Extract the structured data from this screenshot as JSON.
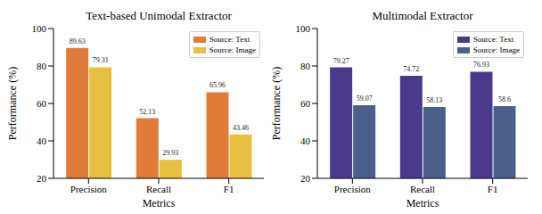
{
  "chart_data": [
    {
      "type": "bar",
      "title": "Text-based Unimodal Extractor",
      "x_label": "Metrics",
      "y_label": "Performance (%)",
      "categories": [
        "Precision",
        "Recall",
        "F1"
      ],
      "series": [
        {
          "name": "Source: Text",
          "color": "#e07b39",
          "values": [
            89.63,
            52.13,
            65.96
          ]
        },
        {
          "name": "Source: Image",
          "color": "#e8c040",
          "values": [
            79.31,
            29.93,
            43.46
          ]
        }
      ],
      "ylim": [
        20,
        100
      ],
      "yticks": [
        20,
        40,
        60,
        80,
        100
      ],
      "legend": "upper right",
      "data_labels": true
    },
    {
      "type": "bar",
      "title": "Multimodal Extractor",
      "x_label": "Metrics",
      "y_label": "Performance (%)",
      "categories": [
        "Precision",
        "Recall",
        "F1"
      ],
      "series": [
        {
          "name": "Source: Text",
          "color": "#4b3a8c",
          "values": [
            79.27,
            74.72,
            76.93
          ]
        },
        {
          "name": "Source: Image",
          "color": "#4a5f8a",
          "values": [
            59.07,
            58.13,
            58.6
          ]
        }
      ],
      "ylim": [
        20,
        100
      ],
      "yticks": [
        20,
        40,
        60,
        80,
        100
      ],
      "legend": "upper right",
      "data_labels": true
    }
  ]
}
